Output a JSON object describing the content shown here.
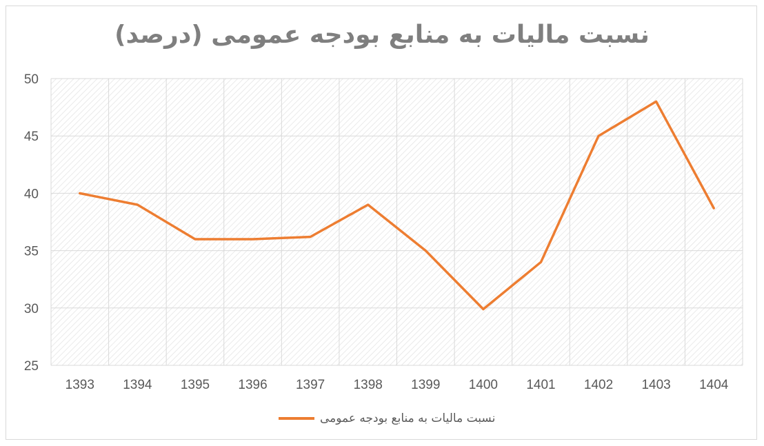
{
  "chart_data": {
    "type": "line",
    "title": "نسبت مالیات به منابع بودجه عمومی (درصد)",
    "categories": [
      "1393",
      "1394",
      "1395",
      "1396",
      "1397",
      "1398",
      "1399",
      "1400",
      "1401",
      "1402",
      "1403",
      "1404"
    ],
    "series": [
      {
        "name": "نسبت مالیات به منابع بودجه عمومی",
        "color": "#ed7d31",
        "values": [
          40,
          39,
          36,
          36,
          36.2,
          39,
          35,
          29.9,
          34,
          45,
          48,
          38.7
        ]
      }
    ],
    "ylim": [
      25,
      50
    ],
    "yticks": [
      "25",
      "30",
      "35",
      "40",
      "45",
      "50"
    ],
    "grid": true,
    "legend_position": "bottom"
  }
}
